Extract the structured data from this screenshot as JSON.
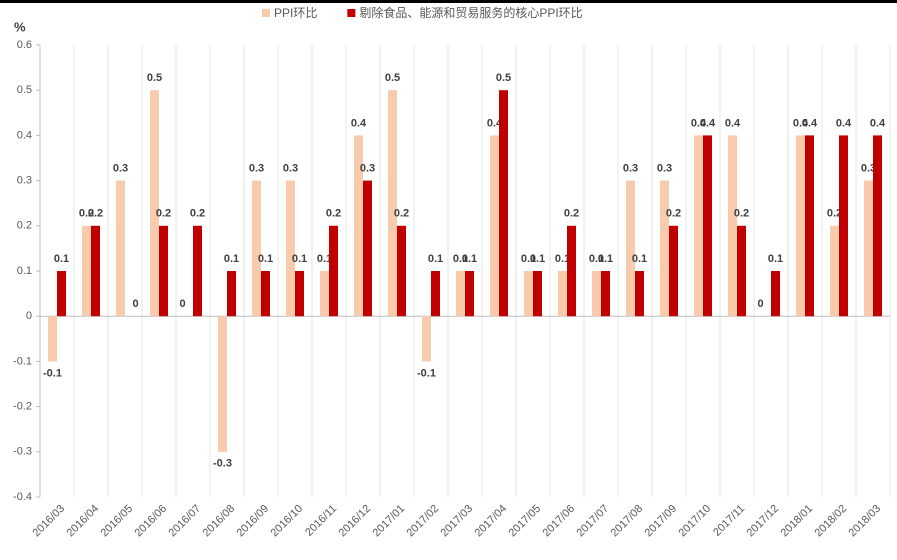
{
  "chart_data": {
    "type": "bar",
    "y_label": "%",
    "categories": [
      "2016/03",
      "2016/04",
      "2016/05",
      "2016/06",
      "2016/07",
      "2016/08",
      "2016/09",
      "2016/10",
      "2016/11",
      "2016/12",
      "2017/01",
      "2017/02",
      "2017/03",
      "2017/04",
      "2017/05",
      "2017/06",
      "2017/07",
      "2017/08",
      "2017/09",
      "2017/10",
      "2017/11",
      "2017/12",
      "2018/01",
      "2018/02",
      "2018/03"
    ],
    "series": [
      {
        "name": "PPI环比",
        "color": "#f8cbad",
        "values": [
          -0.1,
          0.2,
          0.3,
          0.5,
          0,
          -0.3,
          0.3,
          0.3,
          0.1,
          0.4,
          0.5,
          -0.1,
          0.1,
          0.4,
          0.1,
          0.1,
          0.1,
          0.3,
          0.3,
          0.4,
          0.4,
          0,
          0.4,
          0.2,
          0.3
        ]
      },
      {
        "name": "剔除食品、能源和贸易服务的核心PPI环比",
        "color": "#c00000",
        "values": [
          0.1,
          0.2,
          0,
          0.2,
          0.2,
          0.1,
          0.1,
          0.1,
          0.2,
          0.3,
          0.2,
          0.1,
          0.1,
          0.5,
          0.1,
          0.2,
          0.1,
          0.1,
          0.2,
          0.4,
          0.2,
          0.1,
          0.4,
          0.4,
          0.4
        ]
      }
    ],
    "ylim": [
      -0.4,
      0.6
    ],
    "yticks": [
      -0.4,
      -0.3,
      -0.2,
      -0.1,
      0,
      0.1,
      0.2,
      0.3,
      0.4,
      0.5,
      0.6
    ],
    "legend": "top"
  }
}
